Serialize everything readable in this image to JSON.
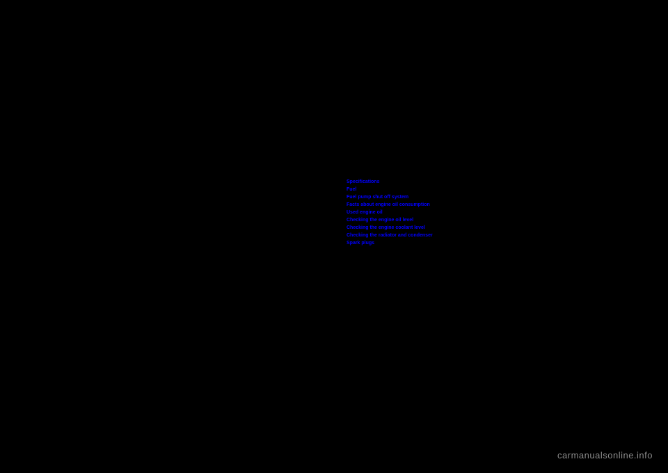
{
  "links": {
    "items": [
      "Specifications",
      "Fuel",
      "Fuel pump shut off system",
      "Facts about engine oil consumption",
      "Used engine oil",
      "Checking the engine oil level",
      "Checking the engine coolant level",
      "Checking the radiator and condenser",
      "Spark plugs"
    ]
  },
  "watermark": {
    "text": "carmanualsonline.info"
  }
}
